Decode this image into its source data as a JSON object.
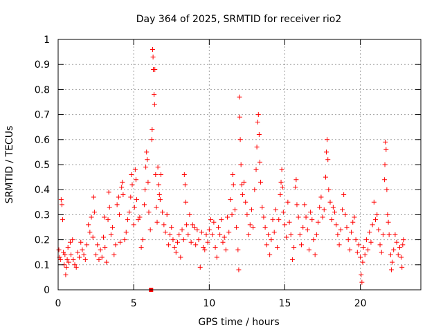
{
  "chart_data": {
    "type": "scatter",
    "title": "Day 364 of 2025, SRMTID for receiver rio2",
    "xlabel": "GPS time / hours",
    "ylabel": "SRMTID / TECUs",
    "xlim": [
      0,
      24
    ],
    "ylim": [
      0,
      1
    ],
    "xticks": [
      0,
      5,
      10,
      15,
      20
    ],
    "yticks": [
      0,
      0.1,
      0.2,
      0.3,
      0.4,
      0.5,
      0.6,
      0.7,
      0.8,
      0.9,
      1
    ],
    "xtick_labels": [
      "0",
      "5",
      "10",
      "15",
      "20"
    ],
    "ytick_labels": [
      "0",
      "0.1",
      "0.2",
      "0.3",
      "0.4",
      "0.5",
      "0.6",
      "0.7",
      "0.8",
      "0.9",
      "1"
    ],
    "grid": true,
    "marker": "plus",
    "color": "#ff0000",
    "special_points": [
      {
        "x": 6.15,
        "y": 0.0,
        "marker": "square"
      }
    ],
    "series": [
      {
        "name": "SRMTID",
        "points": [
          [
            0.05,
            0.16
          ],
          [
            0.1,
            0.13
          ],
          [
            0.15,
            0.12
          ],
          [
            0.2,
            0.36
          ],
          [
            0.25,
            0.34
          ],
          [
            0.3,
            0.28
          ],
          [
            0.35,
            0.15
          ],
          [
            0.4,
            0.1
          ],
          [
            0.45,
            0.14
          ],
          [
            0.5,
            0.06
          ],
          [
            0.55,
            0.09
          ],
          [
            0.6,
            0.12
          ],
          [
            0.65,
            0.17
          ],
          [
            0.7,
            0.11
          ],
          [
            0.8,
            0.19
          ],
          [
            0.85,
            0.14
          ],
          [
            0.95,
            0.2
          ],
          [
            1.0,
            0.12
          ],
          [
            1.1,
            0.1
          ],
          [
            1.2,
            0.09
          ],
          [
            1.3,
            0.15
          ],
          [
            1.4,
            0.13
          ],
          [
            1.5,
            0.19
          ],
          [
            1.6,
            0.16
          ],
          [
            1.7,
            0.14
          ],
          [
            1.8,
            0.12
          ],
          [
            1.9,
            0.18
          ],
          [
            2.0,
            0.26
          ],
          [
            2.1,
            0.23
          ],
          [
            2.2,
            0.29
          ],
          [
            2.3,
            0.21
          ],
          [
            2.35,
            0.37
          ],
          [
            2.4,
            0.31
          ],
          [
            2.5,
            0.14
          ],
          [
            2.6,
            0.18
          ],
          [
            2.7,
            0.12
          ],
          [
            2.8,
            0.16
          ],
          [
            2.9,
            0.13
          ],
          [
            3.0,
            0.21
          ],
          [
            3.05,
            0.29
          ],
          [
            3.1,
            0.17
          ],
          [
            3.2,
            0.11
          ],
          [
            3.3,
            0.28
          ],
          [
            3.35,
            0.39
          ],
          [
            3.4,
            0.33
          ],
          [
            3.5,
            0.22
          ],
          [
            3.6,
            0.25
          ],
          [
            3.7,
            0.14
          ],
          [
            3.8,
            0.18
          ],
          [
            3.9,
            0.34
          ],
          [
            4.0,
            0.37
          ],
          [
            4.05,
            0.3
          ],
          [
            4.1,
            0.19
          ],
          [
            4.2,
            0.41
          ],
          [
            4.25,
            0.43
          ],
          [
            4.3,
            0.38
          ],
          [
            4.4,
            0.2
          ],
          [
            4.5,
            0.23
          ],
          [
            4.6,
            0.28
          ],
          [
            4.7,
            0.31
          ],
          [
            4.8,
            0.37
          ],
          [
            4.85,
            0.46
          ],
          [
            4.9,
            0.42
          ],
          [
            5.0,
            0.26
          ],
          [
            5.05,
            0.33
          ],
          [
            5.1,
            0.48
          ],
          [
            5.15,
            0.44
          ],
          [
            5.2,
            0.36
          ],
          [
            5.3,
            0.28
          ],
          [
            5.4,
            0.29
          ],
          [
            5.5,
            0.17
          ],
          [
            5.6,
            0.2
          ],
          [
            5.7,
            0.34
          ],
          [
            5.75,
            0.4
          ],
          [
            5.8,
            0.49
          ],
          [
            5.85,
            0.55
          ],
          [
            5.9,
            0.52
          ],
          [
            5.95,
            0.43
          ],
          [
            6.0,
            0.31
          ],
          [
            6.1,
            0.24
          ],
          [
            6.2,
            0.6
          ],
          [
            6.22,
            0.64
          ],
          [
            6.25,
            0.96
          ],
          [
            6.28,
            0.93
          ],
          [
            6.3,
            0.88
          ],
          [
            6.35,
            0.78
          ],
          [
            6.38,
            0.74
          ],
          [
            6.4,
            0.88
          ],
          [
            6.45,
            0.46
          ],
          [
            6.5,
            0.33
          ],
          [
            6.55,
            0.27
          ],
          [
            6.6,
            0.49
          ],
          [
            6.65,
            0.42
          ],
          [
            6.7,
            0.38
          ],
          [
            6.75,
            0.36
          ],
          [
            6.8,
            0.46
          ],
          [
            6.9,
            0.31
          ],
          [
            7.0,
            0.26
          ],
          [
            7.1,
            0.23
          ],
          [
            7.2,
            0.3
          ],
          [
            7.3,
            0.18
          ],
          [
            7.4,
            0.22
          ],
          [
            7.5,
            0.25
          ],
          [
            7.6,
            0.2
          ],
          [
            7.7,
            0.17
          ],
          [
            7.8,
            0.15
          ],
          [
            7.9,
            0.19
          ],
          [
            8.0,
            0.22
          ],
          [
            8.1,
            0.13
          ],
          [
            8.2,
            0.24
          ],
          [
            8.3,
            0.2
          ],
          [
            8.35,
            0.46
          ],
          [
            8.4,
            0.42
          ],
          [
            8.45,
            0.35
          ],
          [
            8.5,
            0.26
          ],
          [
            8.6,
            0.22
          ],
          [
            8.7,
            0.3
          ],
          [
            8.8,
            0.19
          ],
          [
            8.9,
            0.26
          ],
          [
            9.0,
            0.25
          ],
          [
            9.1,
            0.18
          ],
          [
            9.2,
            0.24
          ],
          [
            9.3,
            0.2
          ],
          [
            9.4,
            0.09
          ],
          [
            9.5,
            0.23
          ],
          [
            9.6,
            0.17
          ],
          [
            9.7,
            0.16
          ],
          [
            9.8,
            0.22
          ],
          [
            9.9,
            0.19
          ],
          [
            10.0,
            0.24
          ],
          [
            10.1,
            0.28
          ],
          [
            10.2,
            0.22
          ],
          [
            10.3,
            0.27
          ],
          [
            10.4,
            0.17
          ],
          [
            10.5,
            0.13
          ],
          [
            10.6,
            0.25
          ],
          [
            10.7,
            0.22
          ],
          [
            10.8,
            0.28
          ],
          [
            10.9,
            0.19
          ],
          [
            11.0,
            0.21
          ],
          [
            11.1,
            0.16
          ],
          [
            11.2,
            0.29
          ],
          [
            11.3,
            0.23
          ],
          [
            11.4,
            0.36
          ],
          [
            11.5,
            0.3
          ],
          [
            11.55,
            0.46
          ],
          [
            11.6,
            0.42
          ],
          [
            11.7,
            0.32
          ],
          [
            11.8,
            0.25
          ],
          [
            11.9,
            0.16
          ],
          [
            11.95,
            0.08
          ],
          [
            12.0,
            0.77
          ],
          [
            12.02,
            0.69
          ],
          [
            12.05,
            0.6
          ],
          [
            12.1,
            0.5
          ],
          [
            12.15,
            0.42
          ],
          [
            12.2,
            0.38
          ],
          [
            12.3,
            0.43
          ],
          [
            12.4,
            0.35
          ],
          [
            12.5,
            0.3
          ],
          [
            12.6,
            0.22
          ],
          [
            12.7,
            0.26
          ],
          [
            12.8,
            0.32
          ],
          [
            12.9,
            0.25
          ],
          [
            13.0,
            0.4
          ],
          [
            13.1,
            0.48
          ],
          [
            13.15,
            0.57
          ],
          [
            13.2,
            0.67
          ],
          [
            13.25,
            0.7
          ],
          [
            13.3,
            0.62
          ],
          [
            13.35,
            0.51
          ],
          [
            13.4,
            0.43
          ],
          [
            13.5,
            0.33
          ],
          [
            13.6,
            0.29
          ],
          [
            13.7,
            0.25
          ],
          [
            13.8,
            0.18
          ],
          [
            13.9,
            0.22
          ],
          [
            14.0,
            0.14
          ],
          [
            14.1,
            0.2
          ],
          [
            14.2,
            0.28
          ],
          [
            14.3,
            0.23
          ],
          [
            14.4,
            0.32
          ],
          [
            14.5,
            0.17
          ],
          [
            14.6,
            0.28
          ],
          [
            14.7,
            0.38
          ],
          [
            14.75,
            0.43
          ],
          [
            14.8,
            0.48
          ],
          [
            14.85,
            0.41
          ],
          [
            14.9,
            0.31
          ],
          [
            15.0,
            0.26
          ],
          [
            15.1,
            0.21
          ],
          [
            15.2,
            0.35
          ],
          [
            15.3,
            0.27
          ],
          [
            15.4,
            0.22
          ],
          [
            15.5,
            0.12
          ],
          [
            15.6,
            0.17
          ],
          [
            15.7,
            0.41
          ],
          [
            15.75,
            0.44
          ],
          [
            15.8,
            0.34
          ],
          [
            15.9,
            0.29
          ],
          [
            16.0,
            0.22
          ],
          [
            16.1,
            0.18
          ],
          [
            16.2,
            0.25
          ],
          [
            16.3,
            0.34
          ],
          [
            16.4,
            0.29
          ],
          [
            16.5,
            0.24
          ],
          [
            16.6,
            0.16
          ],
          [
            16.7,
            0.31
          ],
          [
            16.8,
            0.28
          ],
          [
            16.9,
            0.2
          ],
          [
            17.0,
            0.14
          ],
          [
            17.1,
            0.22
          ],
          [
            17.2,
            0.27
          ],
          [
            17.3,
            0.33
          ],
          [
            17.4,
            0.37
          ],
          [
            17.5,
            0.29
          ],
          [
            17.6,
            0.32
          ],
          [
            17.7,
            0.45
          ],
          [
            17.75,
            0.55
          ],
          [
            17.8,
            0.6
          ],
          [
            17.85,
            0.52
          ],
          [
            17.9,
            0.4
          ],
          [
            18.0,
            0.35
          ],
          [
            18.1,
            0.28
          ],
          [
            18.2,
            0.33
          ],
          [
            18.3,
            0.31
          ],
          [
            18.4,
            0.26
          ],
          [
            18.5,
            0.22
          ],
          [
            18.6,
            0.18
          ],
          [
            18.7,
            0.24
          ],
          [
            18.8,
            0.32
          ],
          [
            18.9,
            0.38
          ],
          [
            19.0,
            0.3
          ],
          [
            19.1,
            0.25
          ],
          [
            19.2,
            0.2
          ],
          [
            19.3,
            0.16
          ],
          [
            19.4,
            0.23
          ],
          [
            19.5,
            0.27
          ],
          [
            19.6,
            0.29
          ],
          [
            19.7,
            0.2
          ],
          [
            19.8,
            0.15
          ],
          [
            19.9,
            0.18
          ],
          [
            20.0,
            0.13
          ],
          [
            20.05,
            0.06
          ],
          [
            20.1,
            0.03
          ],
          [
            20.15,
            0.11
          ],
          [
            20.2,
            0.17
          ],
          [
            20.3,
            0.14
          ],
          [
            20.4,
            0.2
          ],
          [
            20.5,
            0.16
          ],
          [
            20.6,
            0.23
          ],
          [
            20.7,
            0.19
          ],
          [
            20.8,
            0.26
          ],
          [
            20.9,
            0.35
          ],
          [
            21.0,
            0.28
          ],
          [
            21.1,
            0.3
          ],
          [
            21.2,
            0.24
          ],
          [
            21.3,
            0.18
          ],
          [
            21.4,
            0.15
          ],
          [
            21.5,
            0.22
          ],
          [
            21.6,
            0.44
          ],
          [
            21.62,
            0.5
          ],
          [
            21.65,
            0.59
          ],
          [
            21.7,
            0.56
          ],
          [
            21.75,
            0.4
          ],
          [
            21.8,
            0.3
          ],
          [
            21.85,
            0.27
          ],
          [
            21.9,
            0.22
          ],
          [
            22.0,
            0.14
          ],
          [
            22.05,
            0.08
          ],
          [
            22.1,
            0.11
          ],
          [
            22.2,
            0.16
          ],
          [
            22.3,
            0.22
          ],
          [
            22.4,
            0.19
          ],
          [
            22.5,
            0.14
          ],
          [
            22.6,
            0.17
          ],
          [
            22.7,
            0.13
          ],
          [
            22.75,
            0.09
          ],
          [
            22.8,
            0.18
          ],
          [
            22.85,
            0.2
          ]
        ]
      }
    ]
  }
}
